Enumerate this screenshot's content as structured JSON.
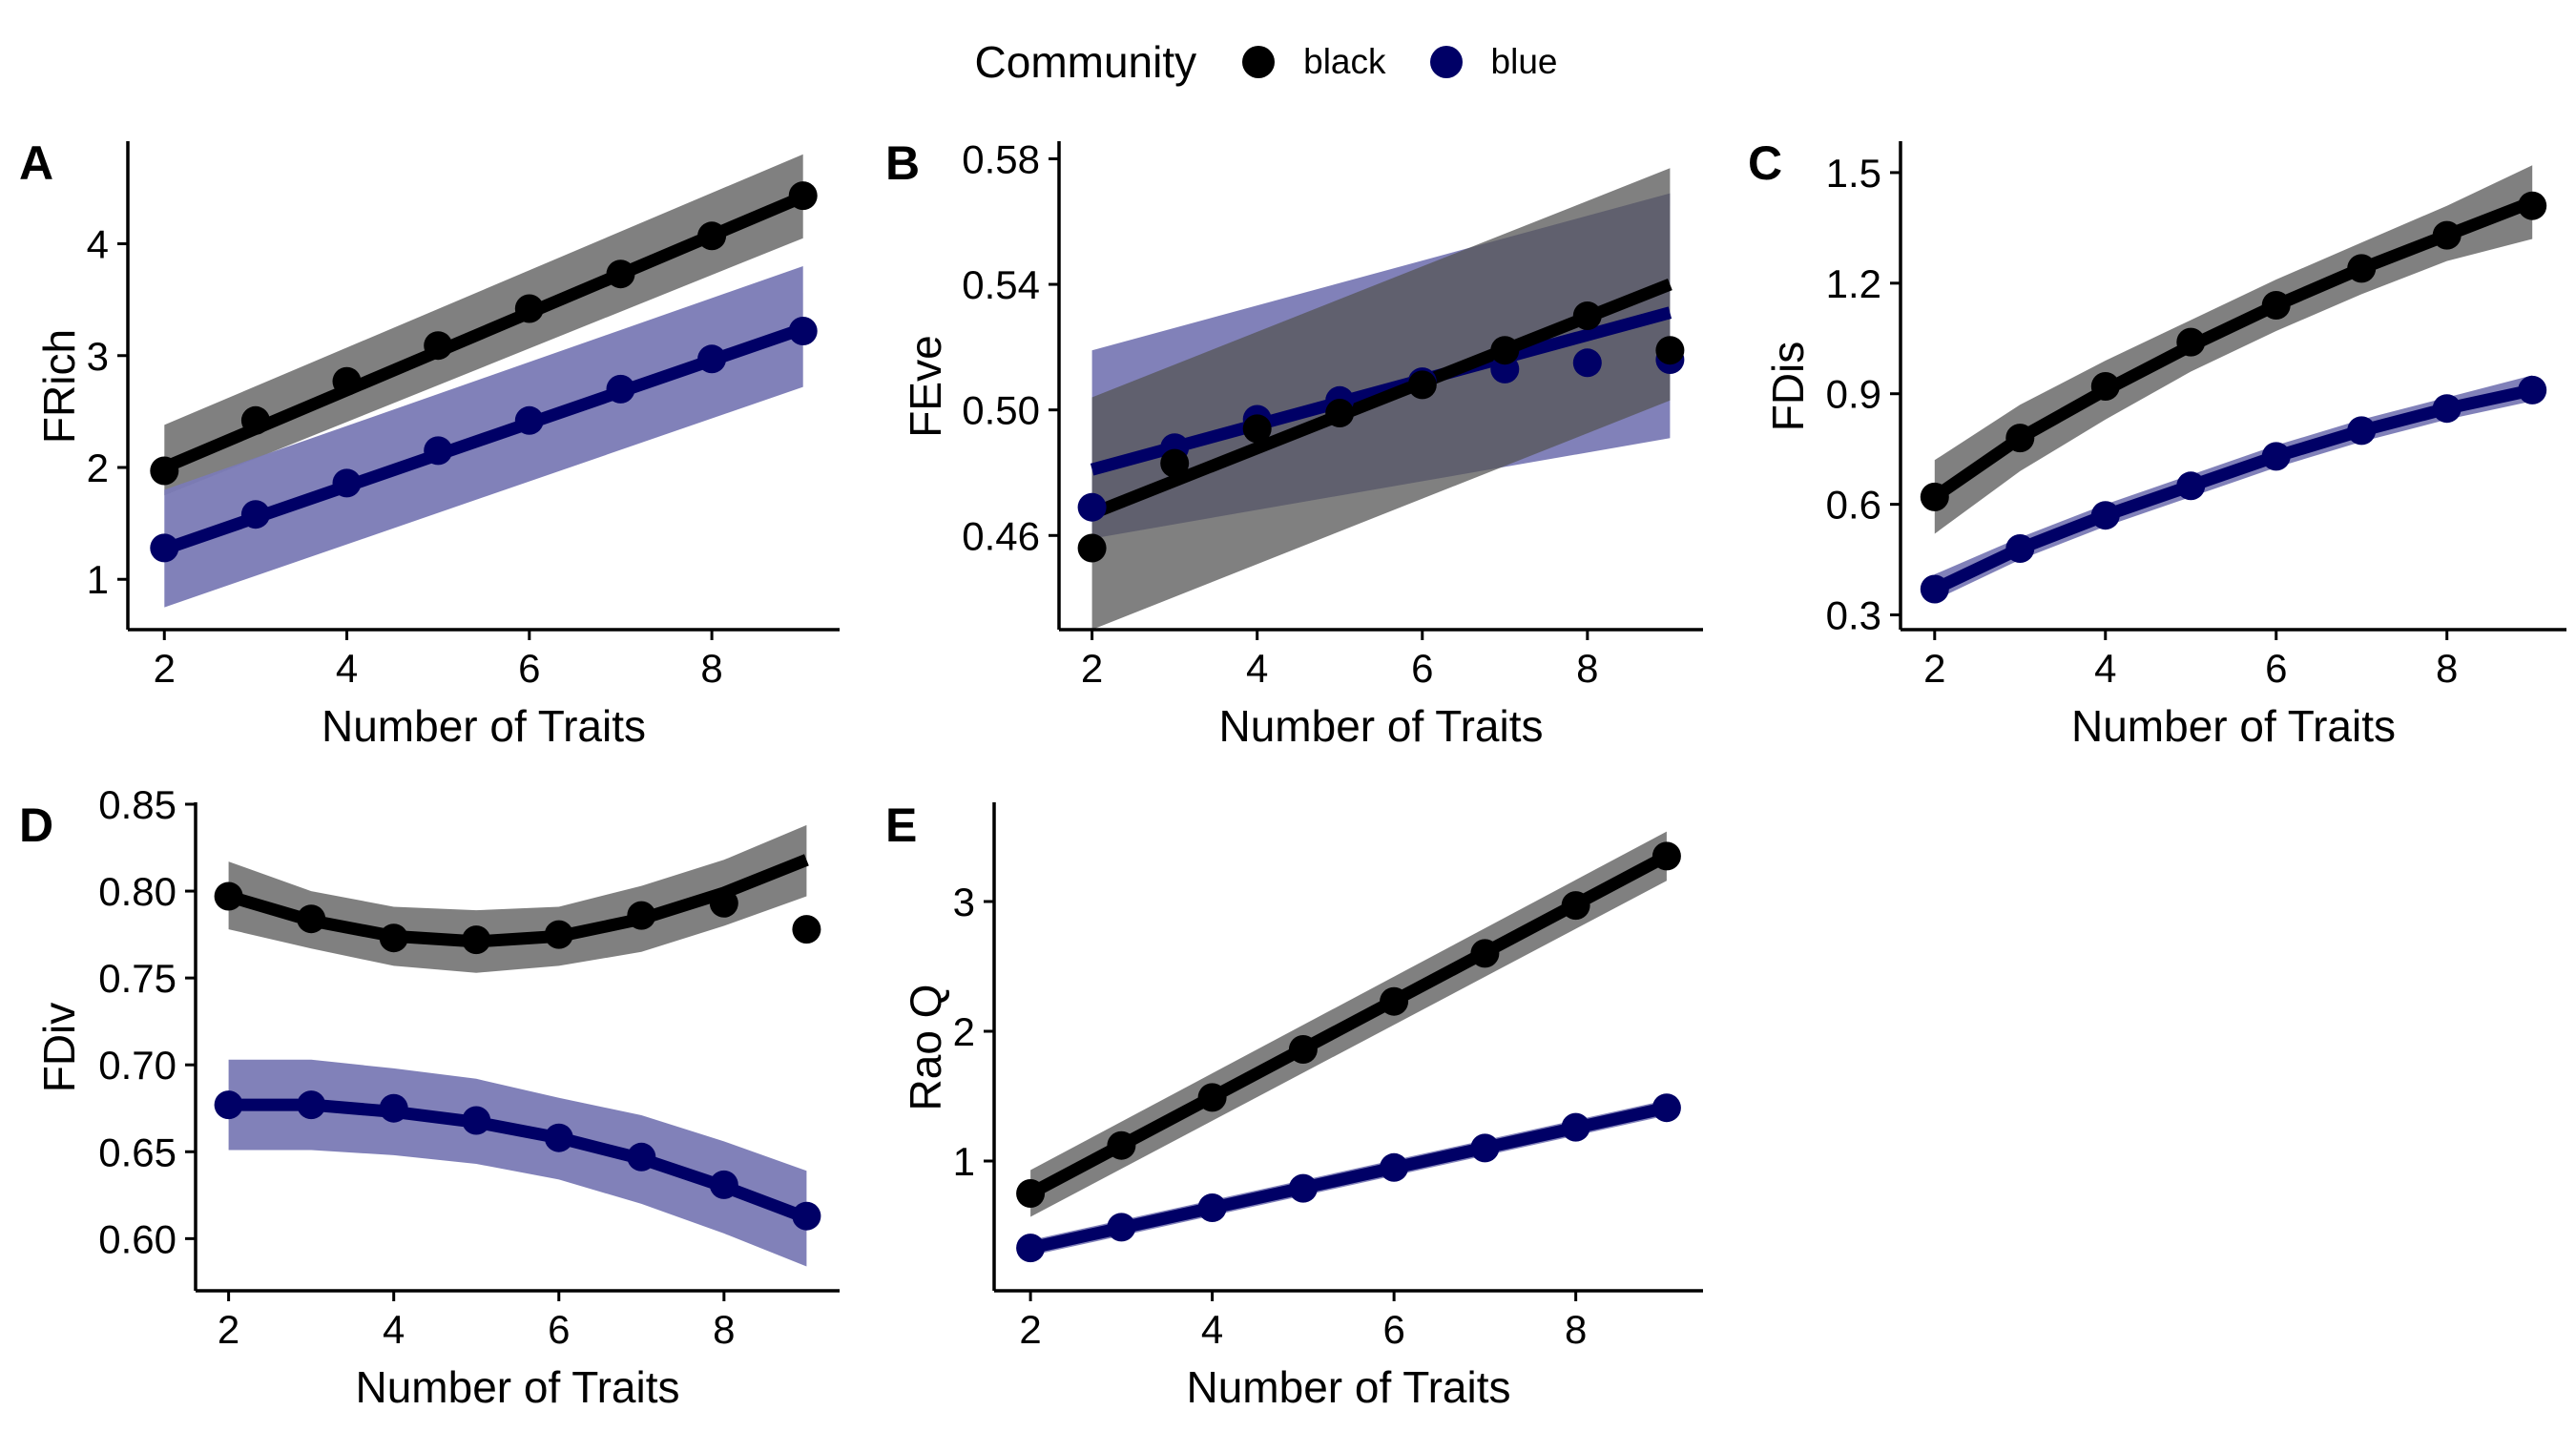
{
  "legend": {
    "title": "Community",
    "items": [
      {
        "label": "black",
        "color": "#000000"
      },
      {
        "label": "blue",
        "color": "#000066"
      }
    ]
  },
  "colors": {
    "black_point": "#000000",
    "black_ribbon": "#555555",
    "blue_point": "#000066",
    "blue_ribbon": "#7a7ab5"
  },
  "chart_data": [
    {
      "type": "line",
      "panel_label": "A",
      "xlabel": "Number of Traits",
      "ylabel": "FRich",
      "xlim": [
        1.6,
        9.4
      ],
      "ylim": [
        0.55,
        4.9
      ],
      "xticks": [
        2,
        4,
        6,
        8
      ],
      "yticks": [
        1,
        2,
        3,
        4
      ],
      "ytick_labels": [
        "1",
        "2",
        "3",
        "4"
      ],
      "series": [
        {
          "name": "black",
          "points_x": [
            2,
            3,
            4,
            5,
            6,
            7,
            8,
            9
          ],
          "points_y": [
            1.97,
            2.42,
            2.77,
            3.09,
            3.42,
            3.73,
            4.07,
            4.43
          ],
          "fit_x": [
            2,
            9
          ],
          "fit_y": [
            2.0,
            4.42
          ],
          "lower": [
            1.75,
            4.05
          ],
          "upper": [
            2.38,
            4.8
          ]
        },
        {
          "name": "blue",
          "points_x": [
            2,
            3,
            4,
            5,
            6,
            7,
            8,
            9
          ],
          "points_y": [
            1.28,
            1.58,
            1.86,
            2.15,
            2.42,
            2.7,
            2.97,
            3.22
          ],
          "fit_x": [
            2,
            9
          ],
          "fit_y": [
            1.27,
            3.24
          ],
          "lower": [
            0.75,
            2.72
          ],
          "upper": [
            1.8,
            3.8
          ]
        }
      ]
    },
    {
      "type": "line",
      "panel_label": "B",
      "xlabel": "Number of Traits",
      "ylabel": "FEve",
      "xlim": [
        1.6,
        9.4
      ],
      "ylim": [
        0.43,
        0.585
      ],
      "xticks": [
        2,
        4,
        6,
        8
      ],
      "yticks": [
        0.46,
        0.5,
        0.54,
        0.58
      ],
      "ytick_labels": [
        "0.46",
        "0.50",
        "0.54",
        "0.58"
      ],
      "series": [
        {
          "name": "blue",
          "points_x": [
            2,
            3,
            4,
            5,
            6,
            7,
            8,
            9
          ],
          "points_y": [
            0.469,
            0.488,
            0.497,
            0.503,
            0.509,
            0.513,
            0.515,
            0.516
          ],
          "fit_x": [
            2,
            9
          ],
          "fit_y": [
            0.481,
            0.531
          ],
          "lower": [
            0.459,
            0.491
          ],
          "upper": [
            0.519,
            0.569
          ]
        },
        {
          "name": "black",
          "points_x": [
            2,
            3,
            4,
            5,
            6,
            7,
            8,
            9
          ],
          "points_y": [
            0.456,
            0.483,
            0.494,
            0.499,
            0.508,
            0.519,
            0.53,
            0.519
          ],
          "fit_x": [
            2,
            9
          ],
          "fit_y": [
            0.467,
            0.54
          ],
          "lower": [
            0.43,
            0.503
          ],
          "upper": [
            0.504,
            0.577
          ]
        }
      ]
    },
    {
      "type": "line",
      "panel_label": "C",
      "xlabel": "Number of Traits",
      "ylabel": "FDis",
      "xlim": [
        1.6,
        9.4
      ],
      "ylim": [
        0.26,
        1.58
      ],
      "xticks": [
        2,
        4,
        6,
        8
      ],
      "yticks": [
        0.3,
        0.6,
        0.9,
        1.2,
        1.5
      ],
      "ytick_labels": [
        "0.3",
        "0.6",
        "0.9",
        "1.2",
        "1.5"
      ],
      "series": [
        {
          "name": "black",
          "points_x": [
            2,
            3,
            4,
            5,
            6,
            7,
            8,
            9
          ],
          "points_y": [
            0.62,
            0.78,
            0.92,
            1.04,
            1.14,
            1.24,
            1.33,
            1.41
          ],
          "fit_x": [
            2,
            3,
            4,
            5,
            6,
            7,
            8,
            9
          ],
          "fit_y": [
            0.62,
            0.78,
            0.91,
            1.03,
            1.14,
            1.24,
            1.33,
            1.42
          ],
          "lower": [
            0.52,
            0.69,
            0.83,
            0.96,
            1.07,
            1.17,
            1.26,
            1.32
          ],
          "upper": [
            0.72,
            0.87,
            0.99,
            1.1,
            1.21,
            1.31,
            1.41,
            1.52
          ]
        },
        {
          "name": "blue",
          "points_x": [
            2,
            3,
            4,
            5,
            6,
            7,
            8,
            9
          ],
          "points_y": [
            0.37,
            0.48,
            0.57,
            0.65,
            0.73,
            0.8,
            0.86,
            0.91
          ],
          "fit_x": [
            2,
            3,
            4,
            5,
            6,
            7,
            8,
            9
          ],
          "fit_y": [
            0.37,
            0.48,
            0.57,
            0.65,
            0.73,
            0.8,
            0.86,
            0.91
          ],
          "lower": [
            0.34,
            0.45,
            0.54,
            0.62,
            0.7,
            0.77,
            0.83,
            0.88
          ],
          "upper": [
            0.41,
            0.51,
            0.6,
            0.68,
            0.76,
            0.83,
            0.89,
            0.95
          ]
        }
      ]
    },
    {
      "type": "line",
      "panel_label": "D",
      "xlabel": "Number of Traits",
      "ylabel": "FDiv",
      "xlim": [
        1.6,
        9.4
      ],
      "ylim": [
        0.57,
        0.85
      ],
      "xticks": [
        2,
        4,
        6,
        8
      ],
      "yticks": [
        0.6,
        0.65,
        0.7,
        0.75,
        0.8,
        0.85
      ],
      "ytick_labels": [
        "0.60",
        "0.65",
        "0.70",
        "0.75",
        "0.80",
        "0.85"
      ],
      "series": [
        {
          "name": "black",
          "points_x": [
            2,
            3,
            4,
            5,
            6,
            7,
            8,
            9
          ],
          "points_y": [
            0.797,
            0.784,
            0.773,
            0.772,
            0.775,
            0.786,
            0.793,
            0.778
          ],
          "fit_x": [
            2,
            3,
            4,
            5,
            6,
            7,
            8,
            9
          ],
          "fit_y": [
            0.797,
            0.783,
            0.774,
            0.771,
            0.774,
            0.784,
            0.799,
            0.818
          ],
          "lower": [
            0.778,
            0.767,
            0.757,
            0.753,
            0.757,
            0.765,
            0.78,
            0.797
          ],
          "upper": [
            0.817,
            0.8,
            0.791,
            0.789,
            0.791,
            0.803,
            0.818,
            0.838
          ]
        },
        {
          "name": "blue",
          "points_x": [
            2,
            3,
            4,
            5,
            6,
            7,
            8,
            9
          ],
          "points_y": [
            0.677,
            0.677,
            0.675,
            0.668,
            0.658,
            0.647,
            0.631,
            0.613
          ],
          "fit_x": [
            2,
            3,
            4,
            5,
            6,
            7,
            8,
            9
          ],
          "fit_y": [
            0.677,
            0.677,
            0.673,
            0.667,
            0.658,
            0.646,
            0.63,
            0.612
          ],
          "lower": [
            0.651,
            0.651,
            0.648,
            0.643,
            0.634,
            0.62,
            0.603,
            0.584
          ],
          "upper": [
            0.703,
            0.703,
            0.698,
            0.692,
            0.681,
            0.671,
            0.656,
            0.639
          ]
        }
      ]
    },
    {
      "type": "line",
      "panel_label": "E",
      "xlabel": "Number of Traits",
      "ylabel": "Rao Q",
      "xlim": [
        1.6,
        9.4
      ],
      "ylim": [
        0.0,
        3.75
      ],
      "xticks": [
        2,
        4,
        6,
        8
      ],
      "yticks": [
        1,
        2,
        3
      ],
      "ytick_labels": [
        "1",
        "2",
        "3"
      ],
      "series": [
        {
          "name": "black",
          "points_x": [
            2,
            3,
            4,
            5,
            6,
            7,
            8,
            9
          ],
          "points_y": [
            0.75,
            1.12,
            1.49,
            1.86,
            2.23,
            2.6,
            2.97,
            3.35
          ],
          "fit_x": [
            2,
            9
          ],
          "fit_y": [
            0.75,
            3.35
          ],
          "lower": [
            0.57,
            3.16
          ],
          "upper": [
            0.93,
            3.54
          ]
        },
        {
          "name": "blue",
          "points_x": [
            2,
            3,
            4,
            5,
            6,
            7,
            8,
            9
          ],
          "points_y": [
            0.33,
            0.49,
            0.64,
            0.79,
            0.95,
            1.1,
            1.26,
            1.41
          ],
          "fit_x": [
            2,
            9
          ],
          "fit_y": [
            0.33,
            1.41
          ],
          "lower": [
            0.27,
            1.35
          ],
          "upper": [
            0.39,
            1.47
          ]
        }
      ]
    }
  ]
}
